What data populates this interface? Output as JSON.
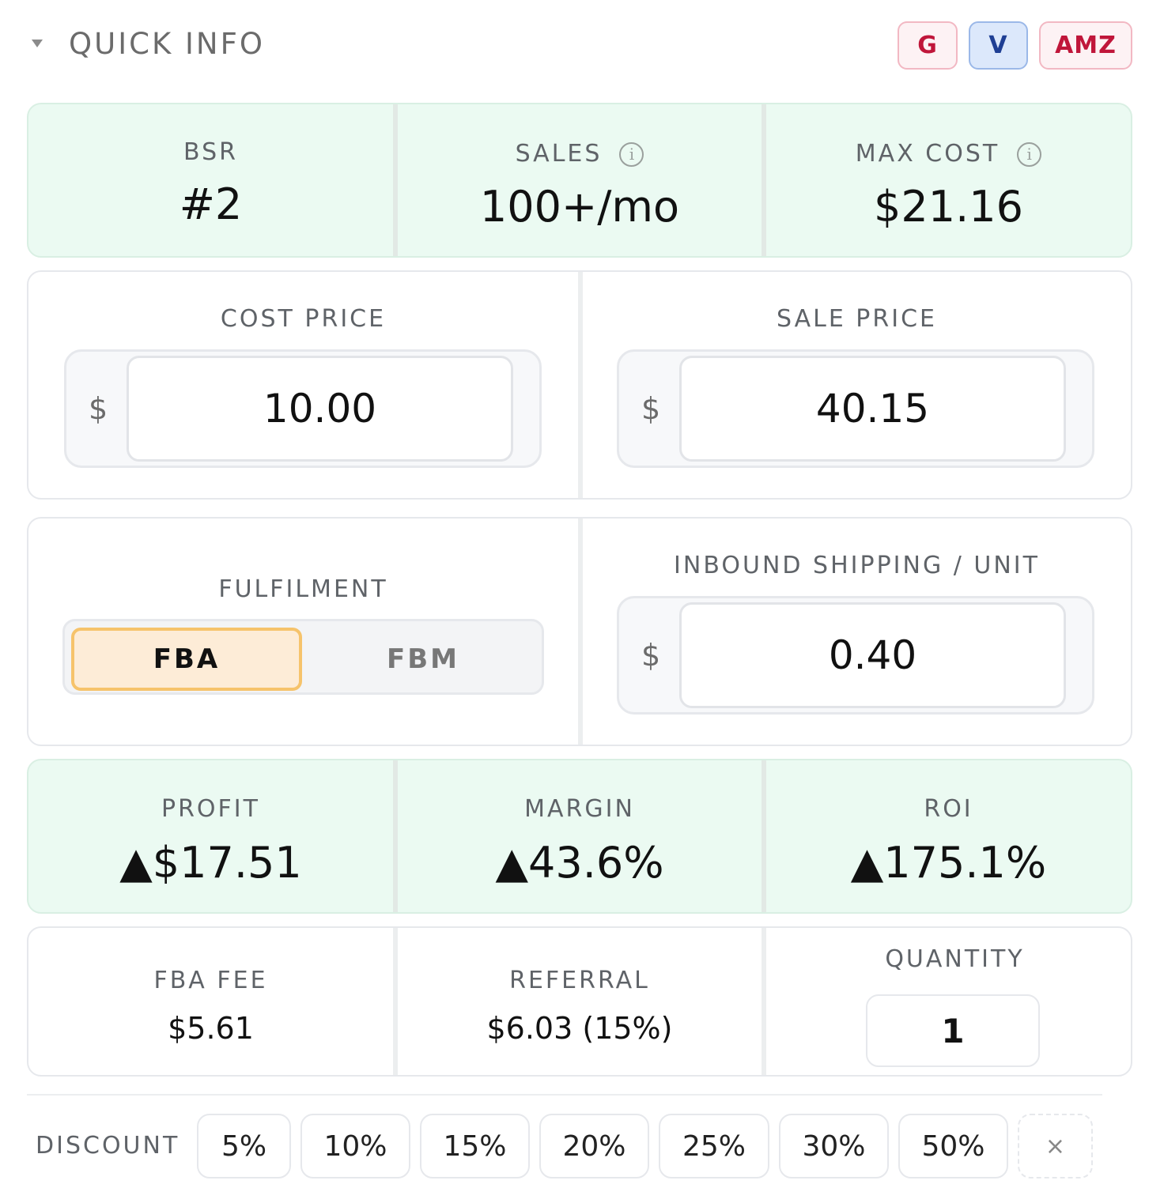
{
  "header": {
    "title": "QUICK INFO",
    "links": {
      "g": "G",
      "v": "V",
      "amz": "AMZ"
    }
  },
  "stats": {
    "bsr": {
      "label": "BSR",
      "value": "#2"
    },
    "sales": {
      "label": "SALES",
      "value": "100+/mo"
    },
    "max_cost": {
      "label": "MAX COST",
      "value": "$21.16"
    },
    "info_icon": "i"
  },
  "prices": {
    "cost": {
      "label": "COST PRICE",
      "currency": "$",
      "value": "10.00"
    },
    "sale": {
      "label": "SALE PRICE",
      "currency": "$",
      "value": "40.15"
    }
  },
  "fulfilment": {
    "label": "FULFILMENT",
    "options": [
      "FBA",
      "FBM"
    ],
    "selected": "FBA"
  },
  "inbound": {
    "label": "INBOUND SHIPPING / UNIT",
    "currency": "$",
    "value": "0.40"
  },
  "results": {
    "profit": {
      "label": "PROFIT",
      "value": "▲$17.51"
    },
    "margin": {
      "label": "MARGIN",
      "value": "▲43.6%"
    },
    "roi": {
      "label": "ROI",
      "value": "▲175.1%"
    }
  },
  "fees": {
    "fba_fee": {
      "label": "FBA FEE",
      "value": "$5.61"
    },
    "referral": {
      "label": "REFERRAL",
      "value": "$6.03 (15%)"
    },
    "quantity": {
      "label": "QUANTITY",
      "value": "1"
    }
  },
  "discount": {
    "label": "DISCOUNT",
    "options": [
      "5%",
      "10%",
      "15%",
      "20%",
      "25%",
      "30%",
      "50%"
    ],
    "clear": "×"
  },
  "colors": {
    "accent_green_bg": "#ebfaf2",
    "selected_orange_bg": "#fdecd7",
    "selected_orange_border": "#f6c36b",
    "brand_red": "#c0163a",
    "brand_blue": "#1f3f94"
  }
}
